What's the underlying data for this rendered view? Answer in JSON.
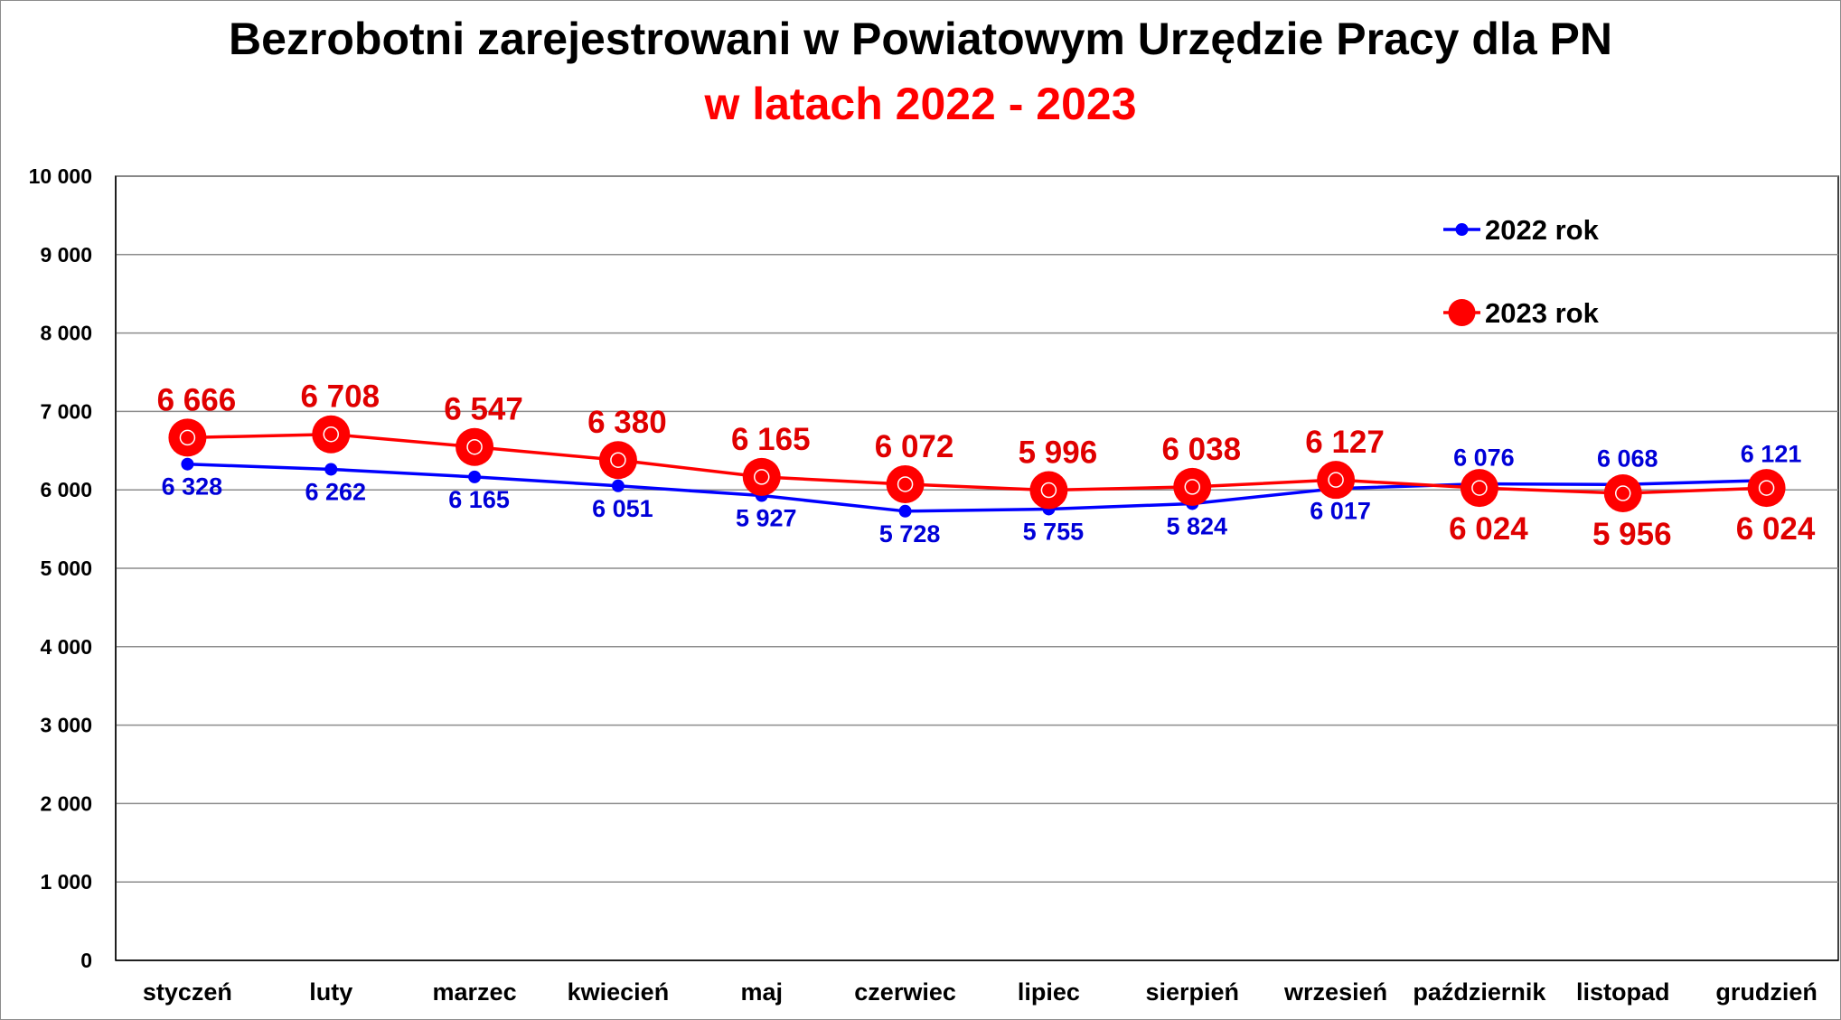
{
  "chart_data": {
    "type": "line",
    "title": "Bezrobotni zarejestrowani w Powiatowym Urzędzie Pracy dla PN",
    "subtitle": "w latach 2022 - 2023",
    "categories": [
      "styczeń",
      "luty",
      "marzec",
      "kwiecień",
      "maj",
      "czerwiec",
      "lipiec",
      "sierpień",
      "wrzesień",
      "październik",
      "listopad",
      "grudzień"
    ],
    "ylim": [
      0,
      10000
    ],
    "yticks": [
      0,
      1000,
      2000,
      3000,
      4000,
      5000,
      6000,
      7000,
      8000,
      9000,
      10000
    ],
    "ytick_labels": [
      "0",
      "1 000",
      "2 000",
      "3 000",
      "4 000",
      "5 000",
      "6 000",
      "7 000",
      "8 000",
      "9 000",
      "10 000"
    ],
    "grid": true,
    "legend_position": "top-right",
    "series": [
      {
        "name": "2022 rok",
        "color": "#0000ff",
        "values": [
          6328,
          6262,
          6165,
          6051,
          5927,
          5728,
          5755,
          5824,
          6017,
          6076,
          6068,
          6121
        ],
        "labels": [
          "6 328",
          "6 262",
          "6 165",
          "6 051",
          "5 927",
          "5 728",
          "5 755",
          "5 824",
          "6 017",
          "6 076",
          "6 068",
          "6 121"
        ]
      },
      {
        "name": "2023 rok",
        "color": "#ff0000",
        "values": [
          6666,
          6708,
          6547,
          6380,
          6165,
          6072,
          5996,
          6038,
          6127,
          6024,
          5956,
          6024
        ],
        "labels": [
          "6 666",
          "6 708",
          "6 547",
          "6 380",
          "6 165",
          "6 072",
          "5 996",
          "6 038",
          "6 127",
          "6 024",
          "5 956",
          "6 024"
        ]
      }
    ]
  }
}
